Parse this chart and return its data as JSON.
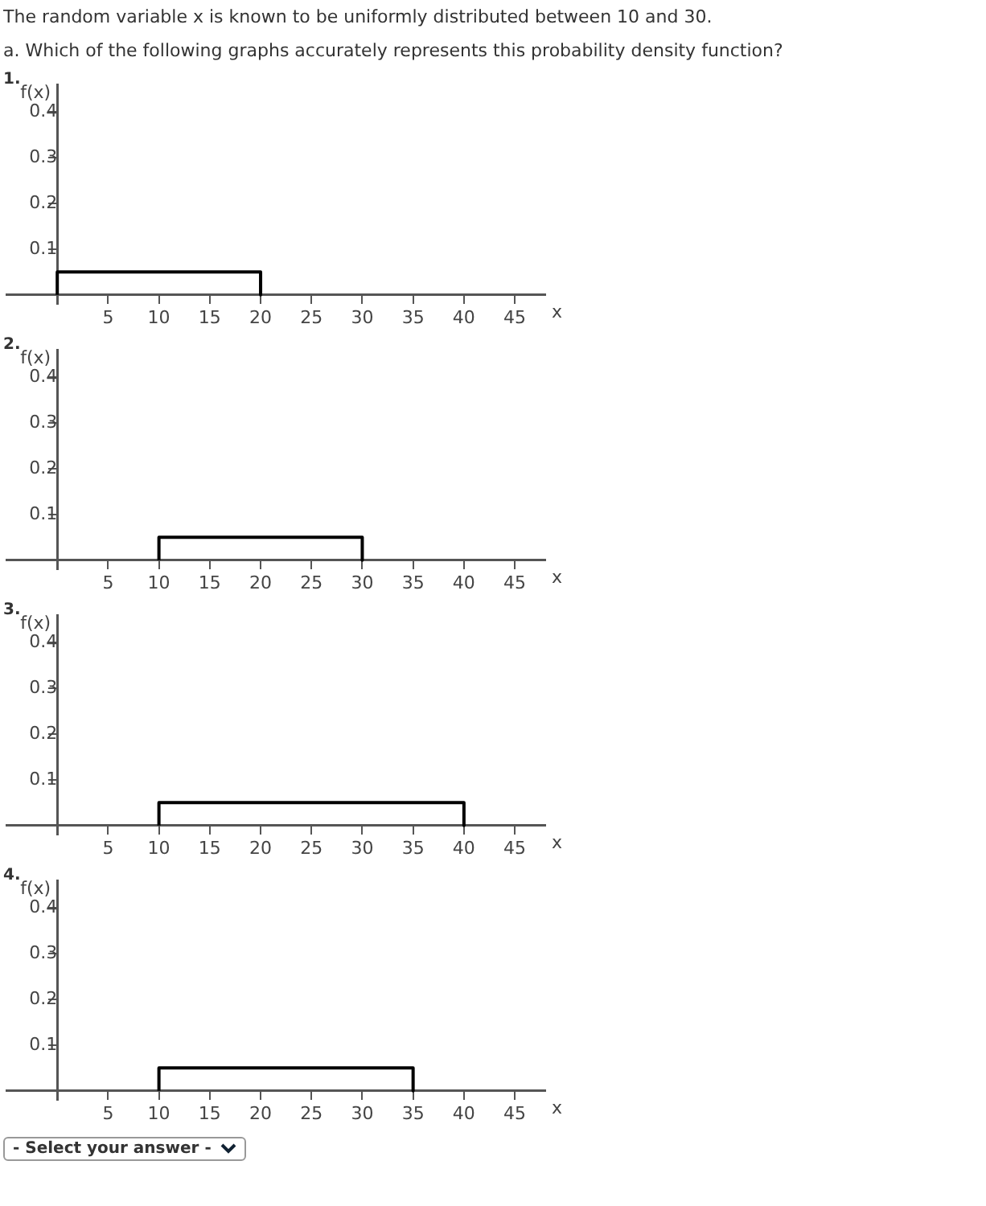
{
  "chart_data": [
    {
      "type": "line",
      "title": "The random variable x is known to be uniformly distributed between 10 and 30.",
      "subtitle": "a. Which of the following graphs accurately represents this probability density function?",
      "annotations": [
        "1."
      ],
      "xlabel": "x",
      "ylabel": "f(x)",
      "xlim": [
        -5,
        48
      ],
      "ylim": [
        -0.02,
        0.46
      ],
      "xticks": [
        5,
        10,
        15,
        20,
        25,
        30,
        35,
        40,
        45
      ],
      "yticks": [
        0.1,
        0.2,
        0.3,
        0.4
      ],
      "series": [
        {
          "color": "#000000",
          "x": [
            0,
            0,
            20,
            20
          ],
          "values": [
            0,
            0.05,
            0.05,
            0
          ]
        }
      ]
    },
    {
      "type": "line",
      "annotations": [
        "2."
      ],
      "xlabel": "x",
      "ylabel": "f(x)",
      "xlim": [
        -5,
        48
      ],
      "ylim": [
        -0.02,
        0.46
      ],
      "xticks": [
        5,
        10,
        15,
        20,
        25,
        30,
        35,
        40,
        45
      ],
      "yticks": [
        0.1,
        0.2,
        0.3,
        0.4
      ],
      "series": [
        {
          "color": "#000000",
          "x": [
            10,
            10,
            30,
            30
          ],
          "values": [
            0,
            0.05,
            0.05,
            0
          ]
        }
      ]
    },
    {
      "type": "line",
      "annotations": [
        "3."
      ],
      "xlabel": "x",
      "ylabel": "f(x)",
      "xlim": [
        -5,
        48
      ],
      "ylim": [
        -0.02,
        0.46
      ],
      "xticks": [
        5,
        10,
        15,
        20,
        25,
        30,
        35,
        40,
        45
      ],
      "yticks": [
        0.1,
        0.2,
        0.3,
        0.4
      ],
      "series": [
        {
          "color": "#000000",
          "x": [
            10,
            10,
            40,
            40
          ],
          "values": [
            0,
            0.05,
            0.05,
            0
          ]
        }
      ]
    },
    {
      "type": "line",
      "annotations": [
        "4.",
        "- Select your answer -"
      ],
      "xlabel": "x",
      "ylabel": "f(x)",
      "xlim": [
        -5,
        48
      ],
      "ylim": [
        -0.02,
        0.46
      ],
      "xticks": [
        5,
        10,
        15,
        20,
        25,
        30,
        35,
        40,
        45
      ],
      "yticks": [
        0.1,
        0.2,
        0.3,
        0.4
      ],
      "series": [
        {
          "color": "#000000",
          "x": [
            10,
            10,
            35,
            35
          ],
          "values": [
            0,
            0.05,
            0.05,
            0
          ]
        }
      ]
    }
  ]
}
